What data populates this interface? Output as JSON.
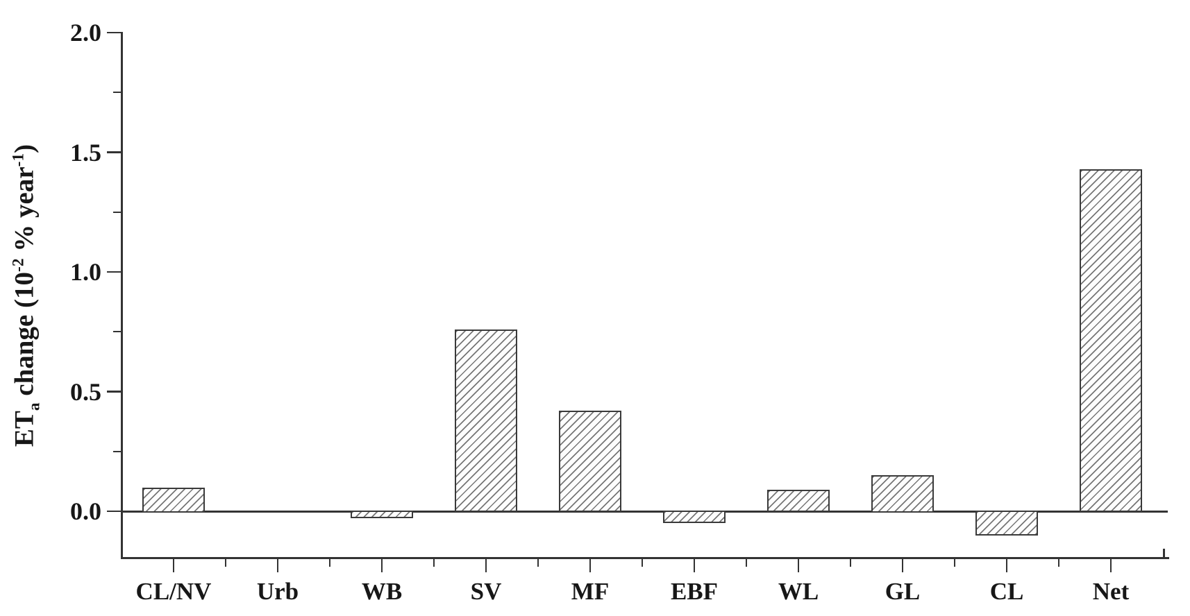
{
  "chart_data": {
    "type": "bar",
    "title": "",
    "xlabel": "",
    "ylabel": "ET_a change (10^-2 % year^-1)",
    "ylabel_segments": [
      {
        "t": "ET"
      },
      {
        "t": "a",
        "style": "sub"
      },
      {
        "t": " change (10"
      },
      {
        "t": "-2",
        "style": "sup"
      },
      {
        "t": " % year"
      },
      {
        "t": "-1",
        "style": "sup"
      },
      {
        "t": ")"
      }
    ],
    "categories": [
      "CL/NV",
      "Urb",
      "WB",
      "SV",
      "MF",
      "EBF",
      "WL",
      "GL",
      "CL",
      "Net"
    ],
    "values": [
      0.1,
      0,
      -0.03,
      0.76,
      0.42,
      -0.05,
      0.09,
      0.15,
      -0.1,
      1.43
    ],
    "ylim": [
      -0.2,
      2.0
    ],
    "yticks": {
      "labels": [
        "0.0",
        "0.5",
        "1.0",
        "1.5",
        "2.0"
      ],
      "values": [
        0,
        0.5,
        1.0,
        1.5,
        2.0
      ]
    },
    "yticks_minor": [
      0.25,
      0.75,
      1.25,
      1.75
    ],
    "grid": false,
    "legend": null,
    "bar_style": {
      "fill": "#fdfdfd",
      "hatch": "diagonal-forward",
      "hatch_color": "#767676",
      "border_color": "#3a3a3a"
    },
    "colors": {
      "axis": "#333333",
      "text": "#171717",
      "background": "#ffffff"
    }
  }
}
